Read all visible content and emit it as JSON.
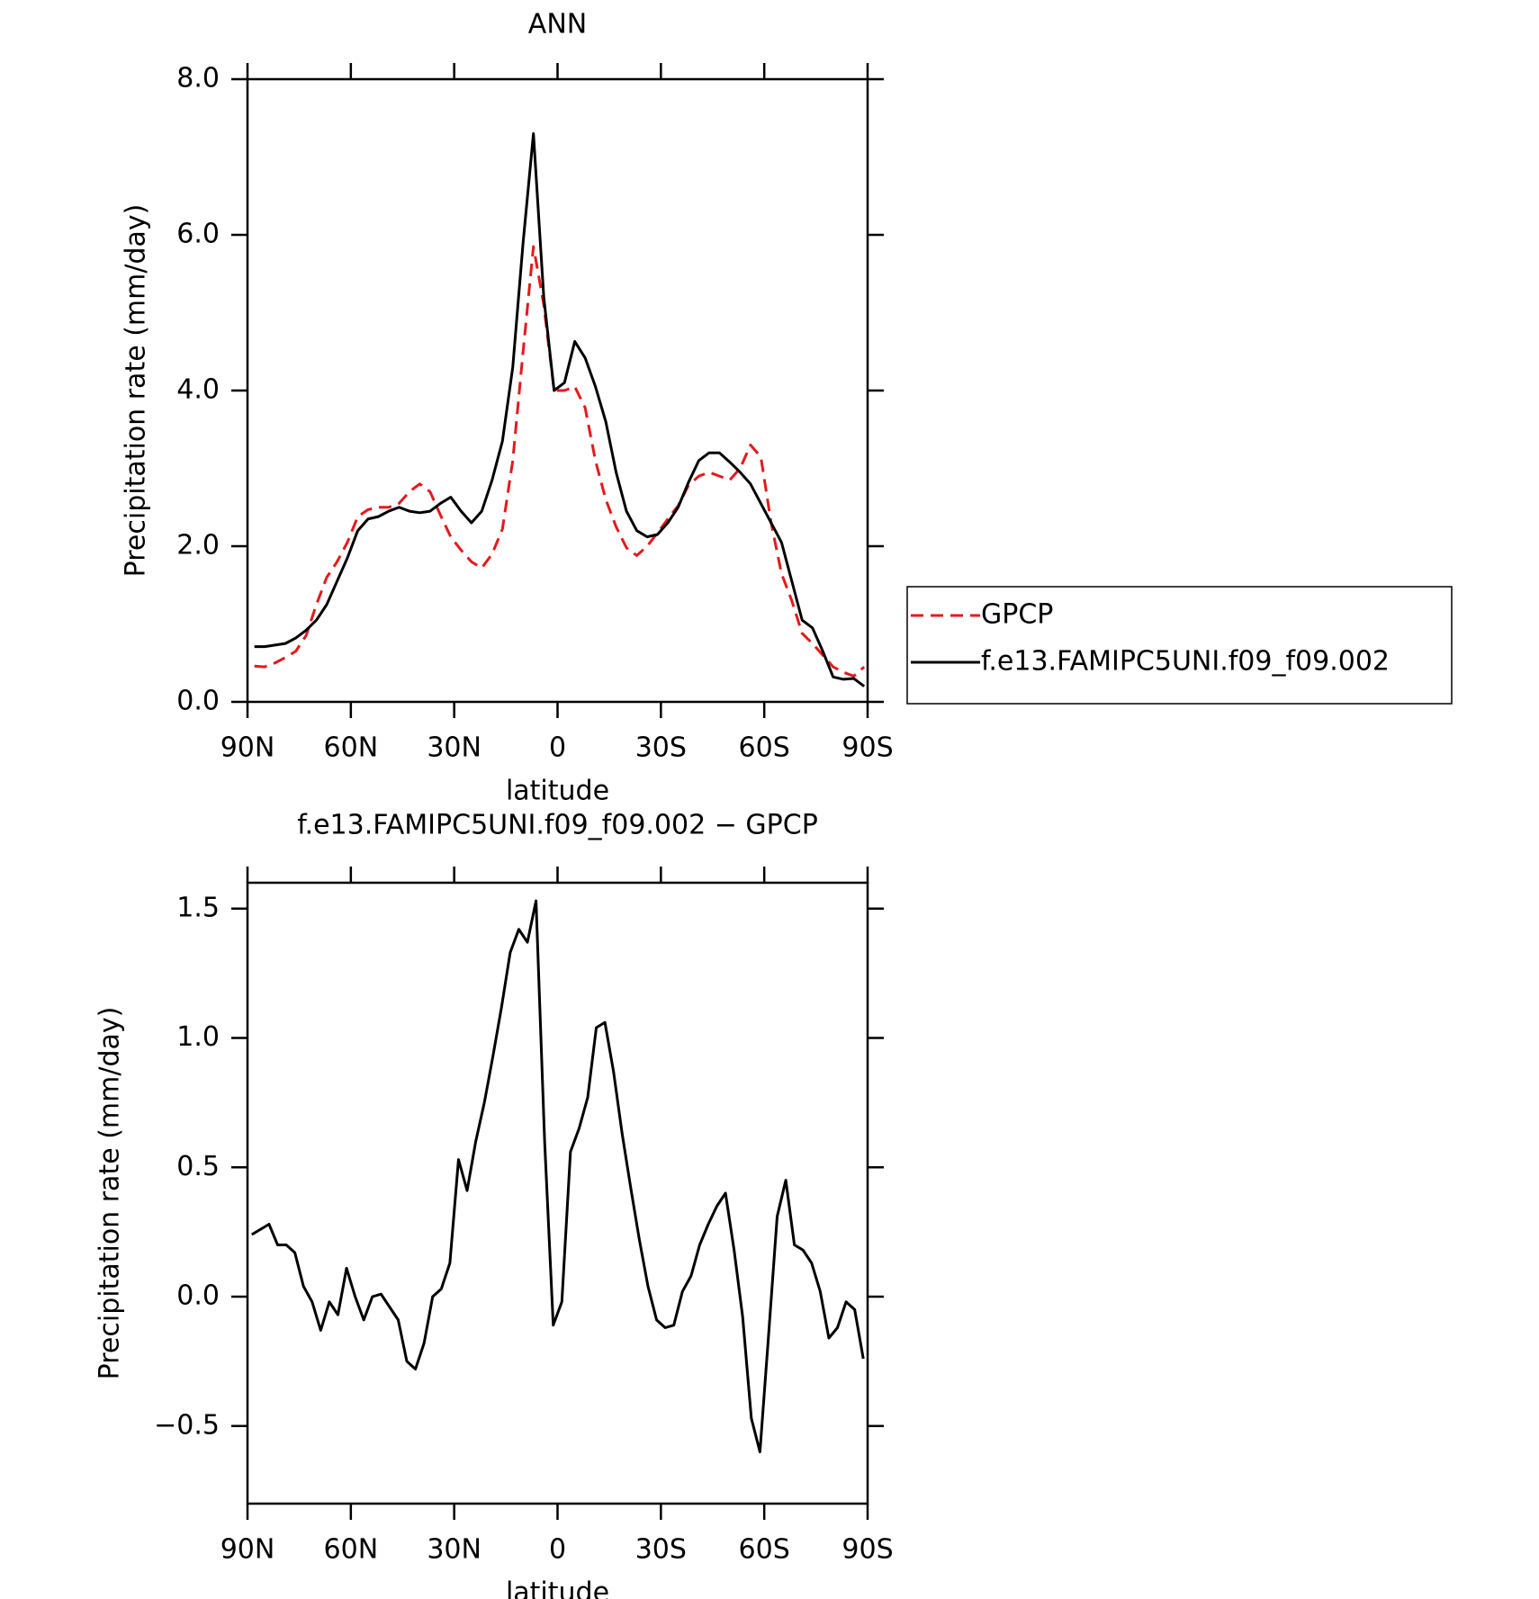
{
  "chart_data": [
    {
      "type": "line",
      "title": "ANN",
      "xlabel": "latitude",
      "ylabel": "Precipitation rate (mm/day)",
      "x": [
        88,
        85,
        82,
        79,
        76,
        73,
        70,
        67,
        64,
        61,
        58,
        55,
        52,
        49,
        46,
        43,
        40,
        37,
        34,
        31,
        28,
        25,
        22,
        19,
        16,
        13,
        10,
        7,
        4,
        1,
        -2,
        -5,
        -8,
        -11,
        -14,
        -17,
        -20,
        -23,
        -26,
        -29,
        -32,
        -35,
        -38,
        -41,
        -44,
        -47,
        -50,
        -53,
        -56,
        -59,
        -62,
        -65,
        -68,
        -71,
        -74,
        -77,
        -80,
        -83,
        -86,
        -89
      ],
      "series": [
        {
          "name": "GPCP",
          "color": "#e41a1c",
          "style": "dashed",
          "values": [
            0.46,
            0.45,
            0.5,
            0.57,
            0.65,
            0.85,
            1.25,
            1.6,
            1.8,
            2.05,
            2.38,
            2.47,
            2.5,
            2.5,
            2.55,
            2.7,
            2.8,
            2.7,
            2.4,
            2.12,
            1.95,
            1.8,
            1.72,
            1.9,
            2.22,
            3.1,
            4.5,
            5.85,
            5.1,
            4.0,
            4.0,
            4.05,
            3.78,
            3.1,
            2.6,
            2.25,
            1.98,
            1.88,
            2.0,
            2.17,
            2.35,
            2.52,
            2.78,
            2.9,
            2.95,
            2.9,
            2.85,
            3.0,
            3.3,
            3.15,
            2.3,
            1.65,
            1.3,
            0.88,
            0.75,
            0.6,
            0.45,
            0.38,
            0.33,
            0.45
          ]
        },
        {
          "name": "f.e13.FAMIPC5UNI.f09_f09.002",
          "color": "#000000",
          "style": "solid",
          "values": [
            0.71,
            0.71,
            0.73,
            0.75,
            0.82,
            0.92,
            1.05,
            1.25,
            1.55,
            1.85,
            2.2,
            2.35,
            2.38,
            2.45,
            2.5,
            2.45,
            2.43,
            2.45,
            2.55,
            2.63,
            2.45,
            2.3,
            2.45,
            2.85,
            3.35,
            4.3,
            5.9,
            7.3,
            5.2,
            4.0,
            4.1,
            4.63,
            4.42,
            4.05,
            3.6,
            2.95,
            2.45,
            2.2,
            2.12,
            2.15,
            2.3,
            2.5,
            2.82,
            3.1,
            3.2,
            3.2,
            3.08,
            2.95,
            2.8,
            2.55,
            2.3,
            2.05,
            1.55,
            1.05,
            0.95,
            0.65,
            0.32,
            0.29,
            0.3,
            0.2
          ]
        }
      ],
      "xlim": [
        90,
        -90
      ],
      "xticks": [
        {
          "value": 90,
          "label": "90N"
        },
        {
          "value": 60,
          "label": "60N"
        },
        {
          "value": 30,
          "label": "30N"
        },
        0,
        {
          "value": -30,
          "label": "30S"
        },
        {
          "value": -60,
          "label": "60S"
        },
        {
          "value": -90,
          "label": "90S"
        }
      ],
      "ylim": [
        0,
        8
      ],
      "yticks": [
        {
          "value": 0,
          "label": "0.0"
        },
        {
          "value": 2,
          "label": "2.0"
        },
        {
          "value": 4,
          "label": "4.0"
        },
        {
          "value": 6,
          "label": "6.0"
        },
        {
          "value": 8,
          "label": "8.0"
        }
      ],
      "legend": "outside right"
    },
    {
      "type": "line",
      "title": "f.e13.FAMIPC5UNI.f09_f09.002 − GPCP",
      "xlabel": "latitude",
      "ylabel": "Precipitation rate (mm/day)",
      "x": [
        88.75,
        86.25,
        83.75,
        81.25,
        78.75,
        76.25,
        73.75,
        71.25,
        68.75,
        66.25,
        63.75,
        61.25,
        58.75,
        56.25,
        53.75,
        51.25,
        48.75,
        46.25,
        43.75,
        41.25,
        38.75,
        36.25,
        33.75,
        31.25,
        28.75,
        26.25,
        23.75,
        21.25,
        18.75,
        16.25,
        13.75,
        11.25,
        8.75,
        6.25,
        3.75,
        1.25,
        -1.25,
        -3.75,
        -6.25,
        -8.75,
        -11.25,
        -13.75,
        -16.25,
        -18.75,
        -21.25,
        -23.75,
        -26.25,
        -28.75,
        -31.25,
        -33.75,
        -36.25,
        -38.75,
        -41.25,
        -43.75,
        -46.25,
        -48.75,
        -51.25,
        -53.75,
        -56.25,
        -58.75,
        -61.25,
        -63.75,
        -66.25,
        -68.75,
        -71.25,
        -73.75,
        -76.25,
        -78.75,
        -81.25,
        -83.75,
        -86.25,
        -88.75
      ],
      "series": [
        {
          "color": "#000000",
          "style": "solid",
          "values": [
            0.24,
            0.26,
            0.28,
            0.2,
            0.2,
            0.17,
            0.04,
            -0.02,
            -0.13,
            -0.02,
            -0.07,
            0.11,
            0,
            -0.09,
            0,
            0.01,
            -0.04,
            -0.09,
            -0.25,
            -0.28,
            -0.18,
            0,
            0.03,
            0.13,
            0.53,
            0.41,
            0.6,
            0.75,
            0.93,
            1.12,
            1.33,
            1.42,
            1.37,
            1.53,
            0.6,
            -0.11,
            -0.02,
            0.56,
            0.65,
            0.77,
            1.04,
            1.06,
            0.87,
            0.63,
            0.42,
            0.22,
            0.04,
            -0.09,
            -0.12,
            -0.11,
            0.02,
            0.08,
            0.2,
            0.28,
            0.35,
            0.4,
            0.18,
            -0.08,
            -0.47,
            -0.6,
            -0.15,
            0.31,
            0.45,
            0.2,
            0.18,
            0.13,
            0.02,
            -0.16,
            -0.12,
            -0.02,
            -0.05,
            -0.24
          ]
        }
      ],
      "xlim": [
        90,
        -90
      ],
      "xticks": [
        {
          "value": 90,
          "label": "90N"
        },
        {
          "value": 60,
          "label": "60N"
        },
        {
          "value": 30,
          "label": "30N"
        },
        0,
        {
          "value": -30,
          "label": "30S"
        },
        {
          "value": -60,
          "label": "60S"
        },
        {
          "value": -90,
          "label": "90S"
        }
      ],
      "ylim": [
        -0.8,
        1.6
      ],
      "yticks": [
        {
          "value": -0.5,
          "label": "−0.5"
        },
        {
          "value": 0,
          "label": "0.0"
        },
        0.5,
        {
          "value": 1,
          "label": "1.0"
        },
        1.5
      ]
    }
  ]
}
